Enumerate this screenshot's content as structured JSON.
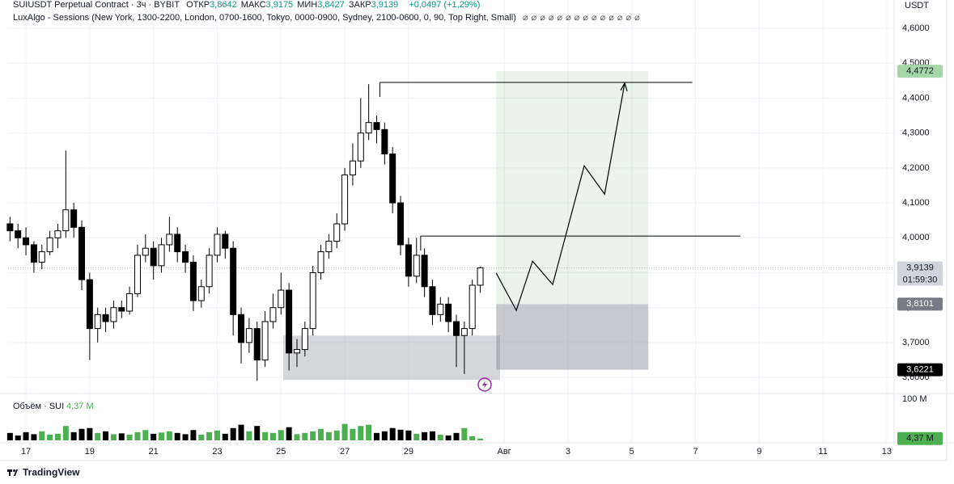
{
  "header": {
    "symbol": "SUIUSDT Perpetual Contract · 3ч · BYBIT",
    "ohlc": [
      {
        "key": "ОТКР",
        "value": "3,8642"
      },
      {
        "key": "МАКС",
        "value": "3,9175"
      },
      {
        "key": "МИН",
        "value": "3,8427"
      },
      {
        "key": "ЗАКР",
        "value": "3,9139"
      }
    ],
    "change": "+0,0497 (+1,29%)",
    "indicator": "LuxAlgo - Sessions (New York, 1300-2200, London, 0700-1600, Tokyo, 0000-0900, Sydney, 2100-0600, 0, 90, Top Right, Small)",
    "currency": "USDT"
  },
  "chart_data": {
    "type": "candlestick",
    "up_color": "#ffffff",
    "down_color": "#000000",
    "x": [
      -0.5,
      -0.25,
      0,
      0.25,
      0.5,
      0.75,
      1,
      1.25,
      1.5,
      1.75,
      2,
      2.25,
      2.5,
      2.75,
      3,
      3.25,
      3.5,
      3.75,
      4,
      4.25,
      4.5,
      4.75,
      5,
      5.25,
      5.5,
      5.75,
      6,
      6.25,
      6.5,
      6.75,
      7,
      7.25,
      7.5,
      7.75,
      8,
      8.25,
      8.5,
      8.75,
      9,
      9.25,
      9.5,
      9.75,
      10,
      10.25,
      10.5,
      10.75,
      11,
      11.25,
      11.5,
      11.75,
      12,
      12.25,
      12.5,
      12.75,
      13,
      13.25,
      13.5,
      13.75,
      14,
      14.25
    ],
    "open": [
      4.04,
      4.02,
      4.0,
      3.98,
      3.93,
      3.96,
      4.0,
      4.02,
      4.08,
      4.03,
      3.88,
      3.74,
      3.78,
      3.76,
      3.8,
      3.79,
      3.84,
      3.95,
      3.97,
      3.92,
      3.98,
      4.01,
      3.96,
      3.93,
      3.82,
      3.86,
      3.95,
      4.01,
      3.97,
      3.78,
      3.7,
      3.74,
      3.65,
      3.76,
      3.8,
      3.85,
      3.67,
      3.68,
      3.74,
      3.9,
      3.96,
      3.99,
      4.04,
      4.18,
      4.22,
      4.3,
      4.33,
      4.31,
      4.24,
      4.1,
      3.98,
      3.89,
      3.95,
      3.86,
      3.78,
      3.81,
      3.76,
      3.72,
      3.74,
      3.8642
    ],
    "high": [
      4.06,
      4.04,
      4.03,
      3.99,
      3.98,
      4.02,
      4.04,
      4.25,
      4.1,
      4.05,
      3.9,
      3.8,
      3.8,
      3.82,
      3.82,
      3.86,
      3.98,
      4.01,
      3.99,
      4.0,
      4.06,
      4.03,
      3.98,
      3.95,
      3.88,
      3.97,
      4.03,
      4.02,
      3.99,
      3.8,
      3.77,
      3.76,
      3.79,
      3.84,
      3.9,
      3.87,
      3.71,
      3.76,
      3.92,
      3.98,
      4.01,
      4.07,
      4.2,
      4.27,
      4.4,
      4.44,
      4.35,
      4.33,
      4.26,
      4.12,
      4.0,
      4.0,
      3.97,
      3.88,
      3.83,
      3.83,
      3.78,
      3.76,
      3.88,
      3.9175
    ],
    "low": [
      3.99,
      3.97,
      3.95,
      3.9,
      3.91,
      3.95,
      3.97,
      4.0,
      4.0,
      3.85,
      3.65,
      3.7,
      3.73,
      3.74,
      3.77,
      3.78,
      3.83,
      3.93,
      3.88,
      3.9,
      3.96,
      3.93,
      3.9,
      3.79,
      3.8,
      3.84,
      3.93,
      3.94,
      3.72,
      3.64,
      3.67,
      3.59,
      3.63,
      3.74,
      3.78,
      3.62,
      3.63,
      3.66,
      3.72,
      3.88,
      3.94,
      3.97,
      4.02,
      4.15,
      4.2,
      4.28,
      4.27,
      4.21,
      4.07,
      3.95,
      3.86,
      3.87,
      3.83,
      3.75,
      3.76,
      3.73,
      3.63,
      3.61,
      3.72,
      3.8427
    ],
    "close": [
      4.02,
      4.0,
      3.98,
      3.93,
      3.96,
      4.0,
      4.02,
      4.08,
      4.03,
      3.88,
      3.74,
      3.78,
      3.76,
      3.8,
      3.79,
      3.84,
      3.95,
      3.97,
      3.92,
      3.98,
      4.01,
      3.96,
      3.93,
      3.82,
      3.86,
      3.95,
      4.01,
      3.97,
      3.78,
      3.7,
      3.74,
      3.65,
      3.76,
      3.8,
      3.85,
      3.67,
      3.68,
      3.74,
      3.9,
      3.96,
      3.99,
      4.04,
      4.18,
      4.22,
      4.3,
      4.33,
      4.31,
      4.24,
      4.1,
      3.98,
      3.89,
      3.95,
      3.86,
      3.78,
      3.81,
      3.76,
      3.72,
      3.74,
      3.8642,
      3.9139
    ],
    "volume": [
      18,
      12,
      20,
      15,
      22,
      14,
      16,
      35,
      20,
      28,
      30,
      18,
      22,
      15,
      17,
      14,
      20,
      25,
      16,
      19,
      22,
      18,
      15,
      25,
      14,
      20,
      24,
      16,
      30,
      38,
      22,
      35,
      20,
      18,
      25,
      32,
      15,
      18,
      22,
      28,
      20,
      24,
      40,
      28,
      35,
      38,
      18,
      22,
      30,
      26,
      24,
      16,
      20,
      22,
      14,
      12,
      18,
      30,
      10,
      4.37
    ],
    "volume_title": "Объём · SUI",
    "volume_label": "4,37 M",
    "volume_color_up": "#4caf50",
    "volume_color_down": "#000000",
    "vlim": [
      0,
      112
    ],
    "vticks": [
      {
        "value": 100,
        "label": "100 M"
      }
    ],
    "xlim": [
      -0.56,
      27.23
    ],
    "xticks": [
      {
        "value": 0,
        "label": "17"
      },
      {
        "value": 2,
        "label": "19"
      },
      {
        "value": 4,
        "label": "21"
      },
      {
        "value": 6,
        "label": "23"
      },
      {
        "value": 8,
        "label": "25"
      },
      {
        "value": 10,
        "label": "27"
      },
      {
        "value": 12,
        "label": "29"
      },
      {
        "value": 15,
        "label": "Авг"
      },
      {
        "value": 17,
        "label": "3"
      },
      {
        "value": 19,
        "label": "5"
      },
      {
        "value": 21,
        "label": "7"
      },
      {
        "value": 23,
        "label": "9"
      },
      {
        "value": 25,
        "label": "11"
      },
      {
        "value": 27,
        "label": "13"
      }
    ],
    "ylim": [
      3.554,
      4.681
    ],
    "yticks": [
      {
        "value": 3.6,
        "label": "3,6000"
      },
      {
        "value": 3.7,
        "label": "3,7000"
      },
      {
        "value": 3.8,
        "label": "3,8000"
      },
      {
        "value": 3.9,
        "label": "3,9000"
      },
      {
        "value": 4.0,
        "label": "4,0000"
      },
      {
        "value": 4.1,
        "label": "4,1000"
      },
      {
        "value": 4.2,
        "label": "4,2000"
      },
      {
        "value": 4.3,
        "label": "4,3000"
      },
      {
        "value": 4.4,
        "label": "4,4000"
      },
      {
        "value": 4.5,
        "label": "4,5000"
      },
      {
        "value": 4.6,
        "label": "4,6000"
      }
    ],
    "current": {
      "value": 3.9139,
      "label": "3,9139",
      "countdown": "01:59:30"
    },
    "position": {
      "x": [
        14.75,
        19.52
      ],
      "target": {
        "value": 4.4772,
        "label": "4,4772"
      },
      "entry": {
        "value": 3.8101,
        "label": "3,8101"
      },
      "stop": {
        "value": 3.6221,
        "label": "3,6221"
      }
    },
    "zone": {
      "x": [
        8.07,
        14.87
      ],
      "top": 3.72,
      "bottom": 3.593
    },
    "rays": [
      {
        "x": [
          11.1,
          20.9
        ],
        "value": 4.445
      },
      {
        "x": [
          12.38,
          22.41
        ],
        "value": 4.005
      }
    ],
    "projection": {
      "x": [
        14.75,
        15.38,
        15.89,
        16.52,
        17.51,
        18.15,
        18.78
      ],
      "values": [
        3.899,
        3.792,
        3.933,
        3.866,
        4.206,
        4.125,
        4.443
      ]
    }
  },
  "footer": {
    "brand": "TradingView"
  }
}
